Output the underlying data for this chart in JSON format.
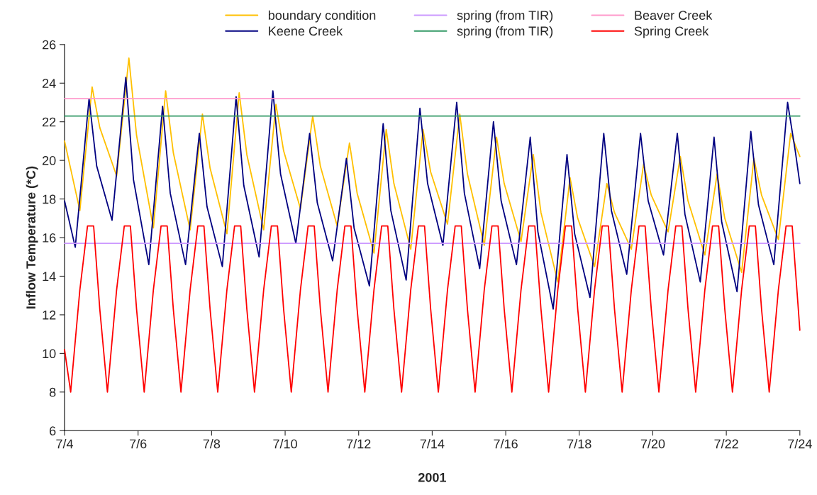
{
  "chart_data": {
    "type": "line",
    "xlabel": "2001",
    "ylabel": "Inflow Temperature (*C)",
    "xlim": [
      "2001-07-04",
      "2001-07-24"
    ],
    "xticks": [
      {
        "value": "2001-07-04",
        "label": "7/4"
      },
      {
        "value": "2001-07-06",
        "label": "7/6"
      },
      {
        "value": "2001-07-08",
        "label": "7/8"
      },
      {
        "value": "2001-07-10",
        "label": "7/10"
      },
      {
        "value": "2001-07-12",
        "label": "7/12"
      },
      {
        "value": "2001-07-14",
        "label": "7/14"
      },
      {
        "value": "2001-07-16",
        "label": "7/16"
      },
      {
        "value": "2001-07-18",
        "label": "7/18"
      },
      {
        "value": "2001-07-20",
        "label": "7/20"
      },
      {
        "value": "2001-07-22",
        "label": "7/22"
      },
      {
        "value": "2001-07-24",
        "label": "7/24"
      }
    ],
    "ylim": [
      6,
      26
    ],
    "yticks": [
      6,
      8,
      10,
      12,
      14,
      16,
      18,
      20,
      22,
      24,
      26
    ],
    "grid": false,
    "legend": "top",
    "marker": "none",
    "line_style": "solid",
    "series": [
      {
        "name": "boundary condition",
        "color": "#ffc000",
        "x": [
          "2001-07-04T00:00",
          "2001-07-04T10:00",
          "2001-07-04T18:00",
          "2001-07-04T23:00",
          "2001-07-05T10:00",
          "2001-07-05T18:00",
          "2001-07-05T23:00",
          "2001-07-06T10:00",
          "2001-07-06T18:00",
          "2001-07-06T23:00",
          "2001-07-07T10:00",
          "2001-07-07T18:00",
          "2001-07-07T23:00",
          "2001-07-08T10:00",
          "2001-07-08T18:00",
          "2001-07-08T23:00",
          "2001-07-09T10:00",
          "2001-07-09T18:00",
          "2001-07-09T23:00",
          "2001-07-10T10:00",
          "2001-07-10T18:00",
          "2001-07-10T23:00",
          "2001-07-11T10:00",
          "2001-07-11T18:00",
          "2001-07-11T23:00",
          "2001-07-12T10:00",
          "2001-07-12T18:00",
          "2001-07-12T23:00",
          "2001-07-13T10:00",
          "2001-07-13T18:00",
          "2001-07-13T23:00",
          "2001-07-14T10:00",
          "2001-07-14T18:00",
          "2001-07-14T23:00",
          "2001-07-15T10:00",
          "2001-07-15T18:00",
          "2001-07-15T23:00",
          "2001-07-16T10:00",
          "2001-07-16T18:00",
          "2001-07-16T23:00",
          "2001-07-17T10:00",
          "2001-07-17T18:00",
          "2001-07-17T23:00",
          "2001-07-18T10:00",
          "2001-07-18T18:00",
          "2001-07-18T23:00",
          "2001-07-19T10:00",
          "2001-07-19T18:00",
          "2001-07-19T23:00",
          "2001-07-20T10:00",
          "2001-07-20T18:00",
          "2001-07-20T23:00",
          "2001-07-21T10:00",
          "2001-07-21T18:00",
          "2001-07-21T23:00",
          "2001-07-22T10:00",
          "2001-07-22T18:00",
          "2001-07-22T23:00",
          "2001-07-23T10:00",
          "2001-07-23T18:00",
          "2001-07-24T00:00"
        ],
        "values": [
          21.0,
          17.4,
          23.8,
          21.7,
          19.2,
          25.3,
          21.3,
          16.5,
          23.6,
          20.4,
          16.4,
          22.4,
          19.6,
          16.2,
          23.5,
          20.3,
          16.4,
          22.9,
          20.5,
          17.5,
          22.3,
          19.7,
          16.6,
          20.9,
          18.3,
          15.2,
          21.6,
          18.8,
          15.4,
          21.6,
          19.4,
          16.7,
          22.4,
          19.3,
          15.6,
          21.2,
          18.8,
          15.8,
          20.3,
          17.3,
          13.7,
          19.1,
          17.0,
          14.5,
          18.8,
          17.3,
          15.4,
          19.8,
          18.2,
          16.3,
          20.2,
          17.9,
          15.1,
          19.3,
          17.0,
          14.2,
          20.1,
          18.2,
          15.9,
          21.4,
          20.2
        ]
      },
      {
        "name": "Keene Creek",
        "color": "#000080",
        "x": [
          "2001-07-04T00:00",
          "2001-07-04T07:00",
          "2001-07-04T16:00",
          "2001-07-04T21:00",
          "2001-07-05T07:00",
          "2001-07-05T16:00",
          "2001-07-05T21:00",
          "2001-07-06T07:00",
          "2001-07-06T16:00",
          "2001-07-06T21:00",
          "2001-07-07T07:00",
          "2001-07-07T16:00",
          "2001-07-07T21:00",
          "2001-07-08T07:00",
          "2001-07-08T16:00",
          "2001-07-08T21:00",
          "2001-07-09T07:00",
          "2001-07-09T16:00",
          "2001-07-09T21:00",
          "2001-07-10T07:00",
          "2001-07-10T16:00",
          "2001-07-10T21:00",
          "2001-07-11T07:00",
          "2001-07-11T16:00",
          "2001-07-11T21:00",
          "2001-07-12T07:00",
          "2001-07-12T16:00",
          "2001-07-12T21:00",
          "2001-07-13T07:00",
          "2001-07-13T16:00",
          "2001-07-13T21:00",
          "2001-07-14T07:00",
          "2001-07-14T16:00",
          "2001-07-14T21:00",
          "2001-07-15T07:00",
          "2001-07-15T16:00",
          "2001-07-15T21:00",
          "2001-07-16T07:00",
          "2001-07-16T16:00",
          "2001-07-16T21:00",
          "2001-07-17T07:00",
          "2001-07-17T16:00",
          "2001-07-17T21:00",
          "2001-07-18T07:00",
          "2001-07-18T16:00",
          "2001-07-18T21:00",
          "2001-07-19T07:00",
          "2001-07-19T16:00",
          "2001-07-19T21:00",
          "2001-07-20T07:00",
          "2001-07-20T16:00",
          "2001-07-20T21:00",
          "2001-07-21T07:00",
          "2001-07-21T16:00",
          "2001-07-21T21:00",
          "2001-07-22T07:00",
          "2001-07-22T16:00",
          "2001-07-22T21:00",
          "2001-07-23T07:00",
          "2001-07-23T16:00",
          "2001-07-23T21:00",
          "2001-07-24T00:00"
        ],
        "values": [
          17.9,
          15.5,
          23.2,
          19.7,
          16.9,
          24.3,
          19.0,
          14.6,
          22.8,
          18.3,
          14.6,
          21.4,
          17.6,
          14.5,
          23.3,
          18.7,
          15.0,
          23.6,
          19.3,
          15.7,
          21.4,
          17.8,
          14.8,
          20.1,
          16.5,
          13.5,
          21.9,
          17.4,
          13.8,
          22.7,
          18.8,
          15.6,
          23.0,
          18.3,
          14.4,
          22.0,
          17.9,
          14.6,
          21.2,
          16.3,
          12.3,
          20.3,
          16.2,
          12.9,
          21.4,
          17.4,
          14.1,
          21.4,
          17.9,
          15.1,
          21.4,
          17.2,
          13.7,
          21.2,
          16.8,
          13.2,
          21.5,
          17.7,
          14.6,
          23.0,
          20.5,
          18.8
        ]
      },
      {
        "name": "spring (from TIR)",
        "color": "#cc99ff",
        "x": [
          "2001-07-04T00:00",
          "2001-07-24T00:00"
        ],
        "values": [
          15.7,
          15.7
        ]
      },
      {
        "name": "spring (from TIR)",
        "color": "#339966",
        "x": [
          "2001-07-04T00:00",
          "2001-07-24T00:00"
        ],
        "values": [
          22.3,
          22.3
        ]
      },
      {
        "name": "Beaver Creek",
        "color": "#ff99cc",
        "x": [
          "2001-07-04T00:00",
          "2001-07-24T00:00"
        ],
        "values": [
          23.2,
          23.2
        ]
      },
      {
        "name": "Spring Creek",
        "color": "#ff0000",
        "x": [
          "2001-07-04T00:00",
          "2001-07-04T04:00",
          "2001-07-04T10:00",
          "2001-07-04T15:00",
          "2001-07-04T19:00",
          "2001-07-04T23:00",
          "2001-07-05T04:00",
          "2001-07-05T10:00",
          "2001-07-05T15:00",
          "2001-07-05T19:00",
          "2001-07-05T23:00",
          "2001-07-06T04:00",
          "2001-07-06T10:00",
          "2001-07-06T15:00",
          "2001-07-06T19:00",
          "2001-07-06T23:00",
          "2001-07-07T04:00",
          "2001-07-07T10:00",
          "2001-07-07T15:00",
          "2001-07-07T19:00",
          "2001-07-07T23:00",
          "2001-07-08T04:00",
          "2001-07-08T10:00",
          "2001-07-08T15:00",
          "2001-07-08T19:00",
          "2001-07-08T23:00",
          "2001-07-09T04:00",
          "2001-07-09T10:00",
          "2001-07-09T15:00",
          "2001-07-09T19:00",
          "2001-07-09T23:00",
          "2001-07-10T04:00",
          "2001-07-10T10:00",
          "2001-07-10T15:00",
          "2001-07-10T19:00",
          "2001-07-10T23:00",
          "2001-07-11T04:00",
          "2001-07-11T10:00",
          "2001-07-11T15:00",
          "2001-07-11T19:00",
          "2001-07-11T23:00",
          "2001-07-12T04:00",
          "2001-07-12T10:00",
          "2001-07-12T15:00",
          "2001-07-12T19:00",
          "2001-07-12T23:00",
          "2001-07-13T04:00",
          "2001-07-13T10:00",
          "2001-07-13T15:00",
          "2001-07-13T19:00",
          "2001-07-13T23:00",
          "2001-07-14T04:00",
          "2001-07-14T10:00",
          "2001-07-14T15:00",
          "2001-07-14T19:00",
          "2001-07-14T23:00",
          "2001-07-15T04:00",
          "2001-07-15T10:00",
          "2001-07-15T15:00",
          "2001-07-15T19:00",
          "2001-07-15T23:00",
          "2001-07-16T04:00",
          "2001-07-16T10:00",
          "2001-07-16T15:00",
          "2001-07-16T19:00",
          "2001-07-16T23:00",
          "2001-07-17T04:00",
          "2001-07-17T10:00",
          "2001-07-17T15:00",
          "2001-07-17T19:00",
          "2001-07-17T23:00",
          "2001-07-18T04:00",
          "2001-07-18T10:00",
          "2001-07-18T15:00",
          "2001-07-18T19:00",
          "2001-07-18T23:00",
          "2001-07-19T04:00",
          "2001-07-19T10:00",
          "2001-07-19T15:00",
          "2001-07-19T19:00",
          "2001-07-19T23:00",
          "2001-07-20T04:00",
          "2001-07-20T10:00",
          "2001-07-20T15:00",
          "2001-07-20T19:00",
          "2001-07-20T23:00",
          "2001-07-21T04:00",
          "2001-07-21T10:00",
          "2001-07-21T15:00",
          "2001-07-21T19:00",
          "2001-07-21T23:00",
          "2001-07-22T04:00",
          "2001-07-22T10:00",
          "2001-07-22T15:00",
          "2001-07-22T19:00",
          "2001-07-22T23:00",
          "2001-07-23T04:00",
          "2001-07-23T10:00",
          "2001-07-23T15:00",
          "2001-07-23T19:00",
          "2001-07-23T23:00",
          "2001-07-24T00:00"
        ],
        "values": [
          10.2,
          8,
          13.3,
          16.6,
          16.6,
          12.3,
          8,
          13.3,
          16.6,
          16.6,
          12.3,
          8,
          13.3,
          16.6,
          16.6,
          12.3,
          8,
          13.3,
          16.6,
          16.6,
          12.3,
          8,
          13.3,
          16.6,
          16.6,
          12.3,
          8,
          13.3,
          16.6,
          16.6,
          12.3,
          8,
          13.3,
          16.6,
          16.6,
          12.3,
          8,
          13.3,
          16.6,
          16.6,
          12.3,
          8,
          13.3,
          16.6,
          16.6,
          12.3,
          8,
          13.3,
          16.6,
          16.6,
          12.3,
          8,
          13.3,
          16.6,
          16.6,
          12.3,
          8,
          13.3,
          16.6,
          16.6,
          12.3,
          8,
          13.3,
          16.6,
          16.6,
          12.3,
          8,
          13.3,
          16.6,
          16.6,
          12.3,
          8,
          13.3,
          16.6,
          16.6,
          12.3,
          8,
          13.3,
          16.6,
          16.6,
          12.3,
          8,
          13.3,
          16.6,
          16.6,
          12.3,
          8,
          13.3,
          16.6,
          16.6,
          12.3,
          8,
          13.3,
          16.6,
          16.6,
          12.3,
          8,
          13.3,
          16.6,
          16.6,
          12.3,
          11.2
        ]
      }
    ]
  }
}
